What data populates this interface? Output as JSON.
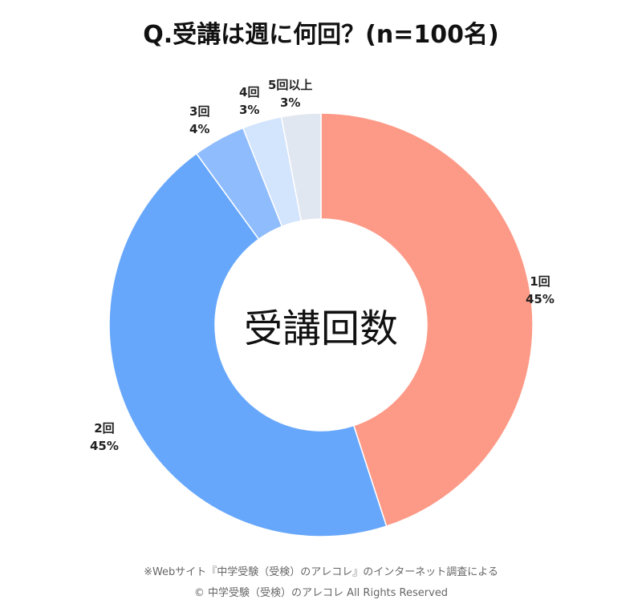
{
  "title": "Q.受講は週に何回？(n=100名)",
  "center_label": "受講回数",
  "chart_data": {
    "type": "pie",
    "style": "donut",
    "categories": [
      "1回",
      "2回",
      "3回",
      "4回",
      "5回以上"
    ],
    "values": [
      45,
      45,
      4,
      3,
      3
    ],
    "value_labels": [
      "45%",
      "45%",
      "4%",
      "3%",
      "3%"
    ],
    "colors": [
      "#fd9a87",
      "#67a7fb",
      "#8fbcfd",
      "#d3e4fd",
      "#e1e7f1"
    ]
  },
  "footer": {
    "source": "※Webサイト『中学受験（受検）のアレコレ』のインターネット調査による",
    "copyright": "© 中学受験（受検）のアレコレ All Rights Reserved"
  }
}
